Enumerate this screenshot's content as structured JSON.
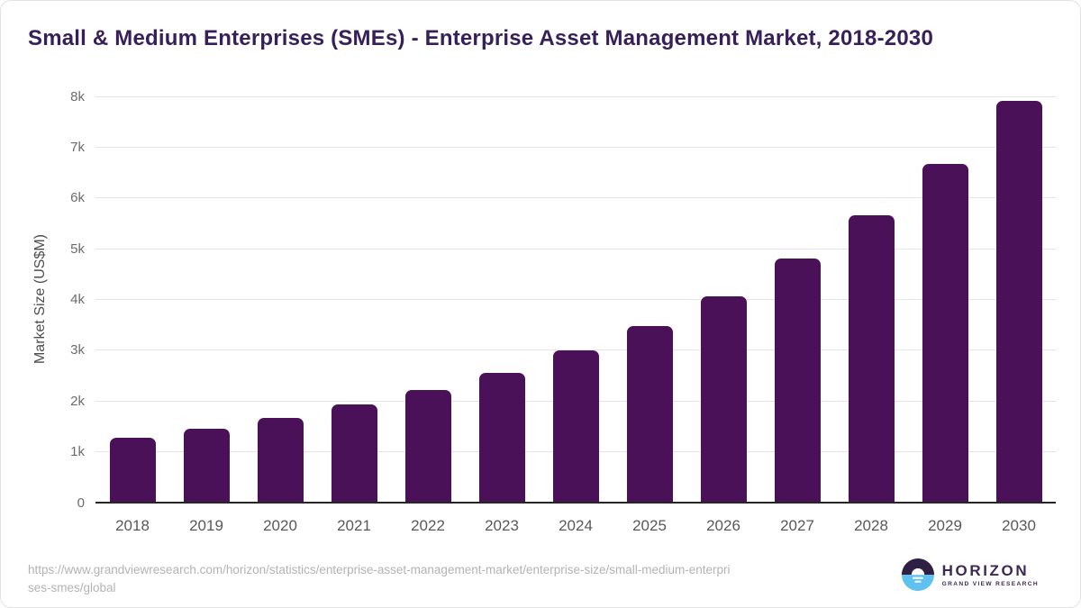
{
  "header": {
    "title": "Small & Medium Enterprises (SMEs) - Enterprise Asset Management Market, 2018-2030"
  },
  "chart_data": {
    "type": "bar",
    "title": "Small & Medium Enterprises (SMEs) - Enterprise Asset Management Market, 2018-2030",
    "xlabel": "",
    "ylabel": "Market Size (US$M)",
    "unit": "US$M",
    "categories": [
      "2018",
      "2019",
      "2020",
      "2021",
      "2022",
      "2023",
      "2024",
      "2025",
      "2026",
      "2027",
      "2028",
      "2029",
      "2030"
    ],
    "values": [
      1280,
      1460,
      1660,
      1930,
      2210,
      2560,
      3000,
      3480,
      4070,
      4800,
      5650,
      6670,
      7920
    ],
    "ylim": [
      0,
      8000
    ],
    "y_ticks": [
      {
        "value": 0,
        "label": "0"
      },
      {
        "value": 1000,
        "label": "1k"
      },
      {
        "value": 2000,
        "label": "2k"
      },
      {
        "value": 3000,
        "label": "3k"
      },
      {
        "value": 4000,
        "label": "4k"
      },
      {
        "value": 5000,
        "label": "5k"
      },
      {
        "value": 6000,
        "label": "6k"
      },
      {
        "value": 7000,
        "label": "7k"
      },
      {
        "value": 8000,
        "label": "8k"
      }
    ],
    "grid": true,
    "legend": "none",
    "bar_color": "#4a1158"
  },
  "footer": {
    "source_url_lines": [
      "https://www.grandviewresearch.com/horizon/statistics/enterprise-asset-management-market/enterprise-size/small-medium-enterpri",
      "ses-smes/global"
    ],
    "logo": {
      "name": "HORIZON",
      "tagline": "GRAND VIEW RESEARCH"
    }
  },
  "colors": {
    "bar": "#4a1158",
    "title": "#371f59",
    "gridline": "#e4e4e4",
    "axis_line": "#262626",
    "y_tick_label": "#6b6b6b",
    "x_tick_label": "#58595b",
    "source_text": "#b3b3b3",
    "logo_purple": "#3b2a56",
    "logo_icon_dark": "#2f2043",
    "logo_icon_blue": "#5ec1ef"
  }
}
